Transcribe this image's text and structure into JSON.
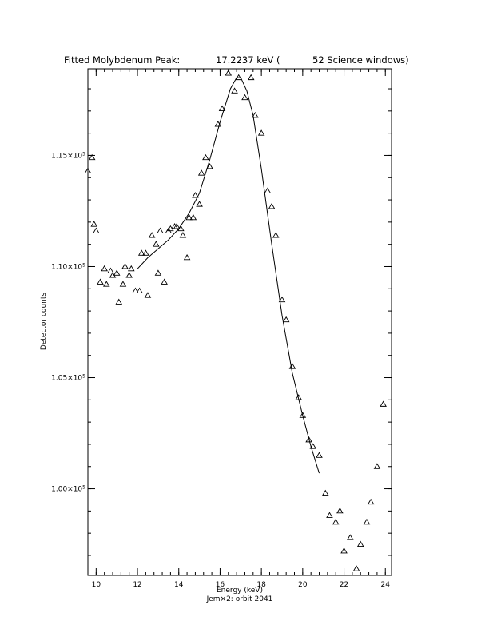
{
  "chart_data": {
    "type": "scatter",
    "title_parts": [
      "Fitted Molybdenum Peak:",
      "17.2237 keV (",
      "52 Science windows)"
    ],
    "xlabel": "Energy (keV)",
    "ylabel": "Detector counts",
    "caption": "Jem×2: orbit 2041",
    "xlim": [
      9.6,
      24.3
    ],
    "ylim": [
      96100,
      118900
    ],
    "x_ticks": [
      10,
      12,
      14,
      16,
      18,
      20,
      22,
      24
    ],
    "x_tick_labels": [
      "10",
      "12",
      "14",
      "16",
      "18",
      "20",
      "22",
      "24"
    ],
    "y_ticks": [
      100000,
      105000,
      110000,
      115000
    ],
    "y_tick_labels": [
      {
        "mantissa": "1.00×10",
        "exp": "5"
      },
      {
        "mantissa": "1.05×10",
        "exp": "5"
      },
      {
        "mantissa": "1.10×10",
        "exp": "5"
      },
      {
        "mantissa": "1.15×10",
        "exp": "5"
      }
    ],
    "grid": false,
    "series": [
      {
        "kind": "points",
        "marker": "open-triangle",
        "points": [
          [
            9.6,
            114300
          ],
          [
            9.8,
            114900
          ],
          [
            9.9,
            111900
          ],
          [
            10.0,
            111600
          ],
          [
            10.2,
            109300
          ],
          [
            10.4,
            109900
          ],
          [
            10.5,
            109200
          ],
          [
            10.7,
            109800
          ],
          [
            10.8,
            109600
          ],
          [
            11.0,
            109700
          ],
          [
            11.1,
            108400
          ],
          [
            11.3,
            109200
          ],
          [
            11.4,
            110000
          ],
          [
            11.6,
            109600
          ],
          [
            11.7,
            109900
          ],
          [
            11.9,
            108900
          ],
          [
            12.1,
            108900
          ],
          [
            12.2,
            110600
          ],
          [
            12.4,
            110600
          ],
          [
            12.5,
            108700
          ],
          [
            12.7,
            111400
          ],
          [
            12.9,
            111000
          ],
          [
            13.0,
            109700
          ],
          [
            13.1,
            111600
          ],
          [
            13.3,
            109300
          ],
          [
            13.5,
            111600
          ],
          [
            13.6,
            111700
          ],
          [
            13.8,
            111800
          ],
          [
            13.9,
            111800
          ],
          [
            14.1,
            111700
          ],
          [
            14.2,
            111400
          ],
          [
            14.4,
            110400
          ],
          [
            14.5,
            112200
          ],
          [
            14.7,
            112200
          ],
          [
            14.8,
            113200
          ],
          [
            15.0,
            112800
          ],
          [
            15.1,
            114200
          ],
          [
            15.3,
            114900
          ],
          [
            15.5,
            114500
          ],
          [
            15.9,
            116400
          ],
          [
            16.1,
            117100
          ],
          [
            16.4,
            118700
          ],
          [
            16.7,
            117900
          ],
          [
            16.9,
            118500
          ],
          [
            17.2,
            117600
          ],
          [
            17.5,
            118500
          ],
          [
            17.7,
            116800
          ],
          [
            18.0,
            116000
          ],
          [
            18.3,
            113400
          ],
          [
            18.5,
            112700
          ],
          [
            18.7,
            111400
          ],
          [
            19.0,
            108500
          ],
          [
            19.2,
            107600
          ],
          [
            19.5,
            105500
          ],
          [
            19.8,
            104100
          ],
          [
            20.0,
            103300
          ],
          [
            20.3,
            102200
          ],
          [
            20.5,
            101900
          ],
          [
            20.8,
            101500
          ],
          [
            21.1,
            99800
          ],
          [
            21.3,
            98800
          ],
          [
            21.6,
            98500
          ],
          [
            21.8,
            99000
          ],
          [
            22.0,
            97200
          ],
          [
            22.3,
            97800
          ],
          [
            22.6,
            96400
          ],
          [
            22.8,
            97500
          ],
          [
            23.1,
            98500
          ],
          [
            23.3,
            99400
          ],
          [
            23.6,
            101000
          ],
          [
            23.9,
            103800
          ]
        ]
      },
      {
        "kind": "line",
        "points": [
          [
            12.0,
            109900
          ],
          [
            12.5,
            110400
          ],
          [
            13.0,
            110800
          ],
          [
            13.5,
            111200
          ],
          [
            14.0,
            111700
          ],
          [
            14.5,
            112400
          ],
          [
            15.0,
            113300
          ],
          [
            15.5,
            114800
          ],
          [
            16.0,
            116500
          ],
          [
            16.5,
            118000
          ],
          [
            16.8,
            118500
          ],
          [
            17.0,
            118500
          ],
          [
            17.3,
            117900
          ],
          [
            17.6,
            116800
          ],
          [
            18.0,
            114400
          ],
          [
            18.5,
            111000
          ],
          [
            19.0,
            107800
          ],
          [
            19.5,
            105200
          ],
          [
            20.0,
            103300
          ],
          [
            20.4,
            101900
          ],
          [
            20.8,
            100700
          ]
        ]
      }
    ]
  }
}
